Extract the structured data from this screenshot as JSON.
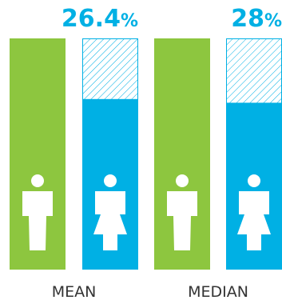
{
  "colors": {
    "men": "#8dc63f",
    "women": "#00b0e4",
    "gap_hatch": "#00b0e4",
    "label_text": "#333333",
    "figure": "#ffffff"
  },
  "icons": {
    "men": "male-person-icon",
    "women": "female-person-icon"
  },
  "chart_data": {
    "type": "bar",
    "categories": [
      "MEAN",
      "MEDIAN"
    ],
    "series": [
      {
        "values": [
          100,
          100
        ]
      },
      {
        "values": [
          73.6,
          72
        ]
      }
    ],
    "gap_labels": [
      {
        "number": "26.4",
        "unit": "%"
      },
      {
        "number": "28",
        "unit": "%"
      }
    ],
    "ylim": [
      0,
      100
    ]
  }
}
